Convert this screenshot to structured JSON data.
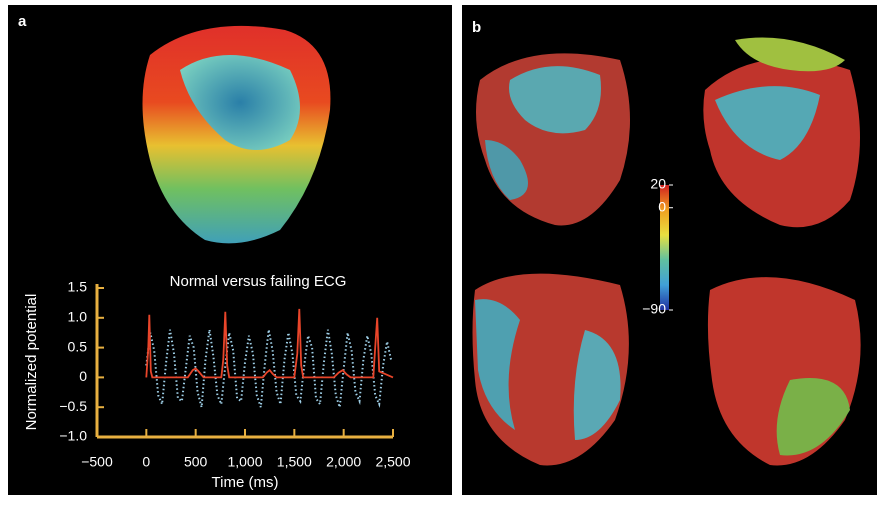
{
  "panels": {
    "a": {
      "label": "a"
    },
    "b": {
      "label": "b"
    }
  },
  "chart_data": {
    "type": "line",
    "title": "Normal versus failing ECG",
    "x_label": "Time (ms)",
    "y_label": "Normalized potential",
    "xlim": [
      -500,
      2500
    ],
    "xticks": [
      {
        "value": -500,
        "label": "−500"
      },
      0,
      500,
      {
        "value": 1000,
        "label": "1,000"
      },
      {
        "value": 1500,
        "label": "1,500"
      },
      {
        "value": 2000,
        "label": "2,000"
      },
      {
        "value": 2500,
        "label": "2,500"
      }
    ],
    "ylim": [
      -1,
      1.5
    ],
    "yticks": [
      {
        "value": -1,
        "label": "−1.0"
      },
      {
        "value": -0.5,
        "label": "−0.5"
      },
      0,
      0.5,
      {
        "value": 1,
        "label": "1.0"
      },
      1.5
    ],
    "axis_color": "#e8b040",
    "series": [
      {
        "color": "#9fd0e8",
        "line_style": "dotted",
        "x": [
          0,
          40,
          80,
          120,
          160,
          200,
          240,
          280,
          320,
          360,
          400,
          440,
          480,
          520,
          560,
          600,
          640,
          680,
          720,
          760,
          800,
          840,
          880,
          920,
          960,
          1000,
          1040,
          1080,
          1120,
          1160,
          1200,
          1240,
          1280,
          1320,
          1360,
          1400,
          1440,
          1480,
          1520,
          1560,
          1600,
          1640,
          1680,
          1720,
          1760,
          1800,
          1840,
          1880,
          1920,
          1960,
          2000,
          2040,
          2080,
          2120,
          2160,
          2200,
          2240,
          2280,
          2320,
          2360,
          2400,
          2440,
          2480
        ],
        "values": [
          0.2,
          0.75,
          0.45,
          -0.3,
          -0.45,
          0.25,
          0.8,
          0.4,
          -0.35,
          -0.4,
          0.15,
          0.7,
          0.5,
          -0.25,
          -0.5,
          0.3,
          0.8,
          0.35,
          -0.3,
          -0.45,
          0.2,
          0.75,
          0.45,
          -0.35,
          -0.4,
          0.25,
          0.7,
          0.4,
          -0.3,
          -0.5,
          0.2,
          0.8,
          0.45,
          -0.25,
          -0.45,
          0.3,
          0.75,
          0.4,
          -0.3,
          -0.4,
          0.2,
          0.7,
          0.5,
          -0.35,
          -0.45,
          0.25,
          0.8,
          0.4,
          -0.3,
          -0.5,
          0.15,
          0.75,
          0.45,
          -0.25,
          -0.4,
          0.3,
          0.7,
          0.4,
          -0.3,
          -0.45,
          0.2,
          0.6,
          0.3
        ]
      },
      {
        "color": "#e8452a",
        "line_style": "solid",
        "x": [
          0,
          20,
          30,
          45,
          60,
          100,
          420,
          470,
          500,
          530,
          580,
          760,
          780,
          800,
          820,
          840,
          1180,
          1220,
          1250,
          1280,
          1320,
          1500,
          1530,
          1550,
          1570,
          1590,
          1900,
          1950,
          1990,
          2030,
          2070,
          2300,
          2320,
          2340,
          2360,
          2500
        ],
        "values": [
          0,
          0.5,
          1.05,
          0.1,
          0,
          0,
          0,
          0.12,
          0.15,
          0.1,
          0,
          0,
          0.3,
          1.1,
          0.2,
          0,
          0,
          0.08,
          0.12,
          0.06,
          0,
          0,
          0.4,
          1.15,
          0.2,
          0,
          0,
          0.08,
          0.12,
          0.05,
          0,
          0,
          0.5,
          1.0,
          0.1,
          0
        ]
      }
    ]
  },
  "colorbar": {
    "lim": [
      -90,
      20
    ],
    "ticks": [
      20,
      0,
      {
        "value": -90,
        "label": "−90"
      }
    ]
  }
}
